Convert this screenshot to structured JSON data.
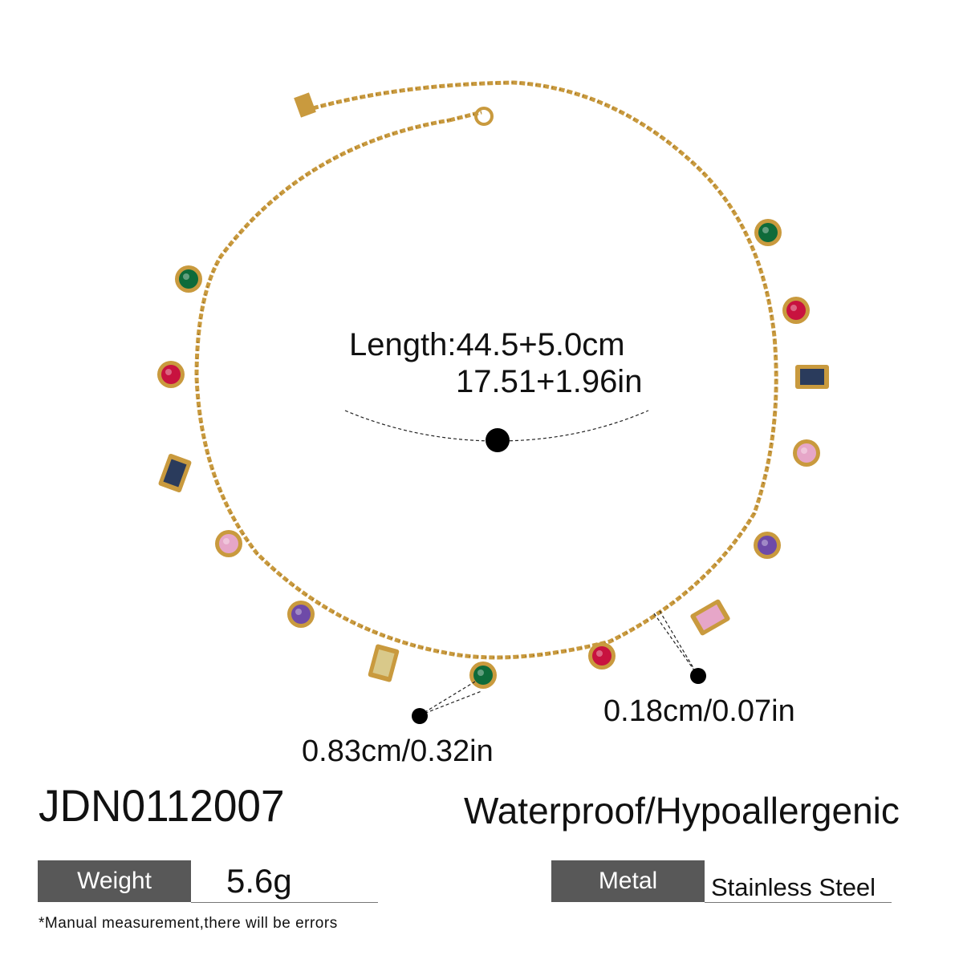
{
  "measurements": {
    "length_cm": "Length:44.5+5.0cm",
    "length_in": "17.51+1.96in",
    "pendant_size": "0.83cm/0.32in",
    "chain_width": "0.18cm/0.07in"
  },
  "product": {
    "sku": "JDN0112007",
    "features": "Waterproof/Hypoallergenic",
    "weight_label": "Weight",
    "weight_value": "5.6g",
    "metal_label": "Metal",
    "metal_value": "Stainless Steel",
    "note": "*Manual measurement,there will be errors"
  },
  "colors": {
    "gold": "#c99a3e",
    "label_bg": "#585858",
    "gem_green": "#0e6b3a",
    "gem_red": "#c8123f",
    "gem_blue": "#2a3b5c",
    "gem_pink": "#e6a6c8",
    "gem_purple": "#6e4aa8",
    "gem_yellow": "#d9c98a"
  }
}
